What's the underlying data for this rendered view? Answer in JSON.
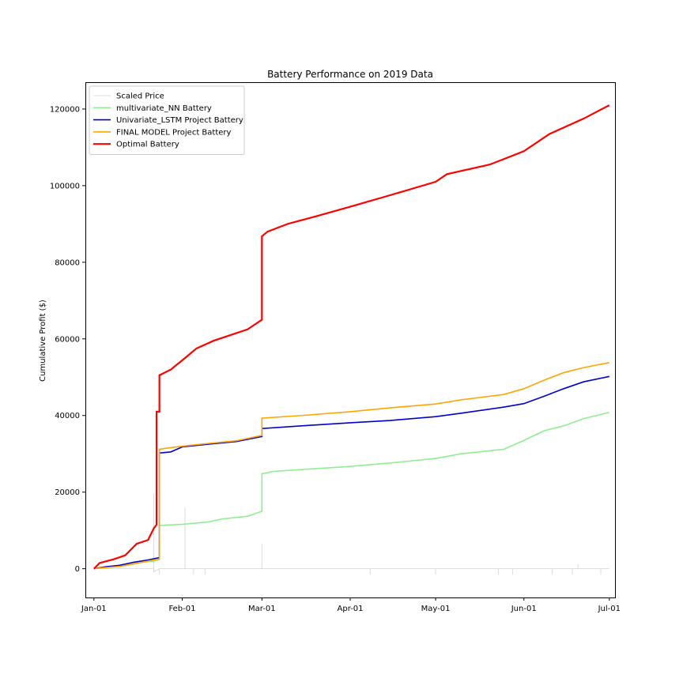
{
  "chart_data": {
    "type": "line",
    "title": "Battery Performance on 2019 Data",
    "xlabel": "",
    "ylabel": "Cumulative Profit ($)",
    "x_range": [
      "2018-12-29",
      "2019-07-03"
    ],
    "ylim": [
      -7500,
      127000
    ],
    "x_ticks": [
      {
        "date": "2019-01-01",
        "label": "Jan-01"
      },
      {
        "date": "2019-02-01",
        "label": "Feb-01"
      },
      {
        "date": "2019-03-01",
        "label": "Mar-01"
      },
      {
        "date": "2019-04-01",
        "label": "Apr-01"
      },
      {
        "date": "2019-05-01",
        "label": "May-01"
      },
      {
        "date": "2019-06-01",
        "label": "Jun-01"
      },
      {
        "date": "2019-07-01",
        "label": "Jul-01"
      }
    ],
    "y_ticks": [
      0,
      20000,
      40000,
      60000,
      80000,
      100000,
      120000
    ],
    "grid": false,
    "legend_position": "top-left",
    "series": [
      {
        "name": "Scaled Price",
        "color": "#d3d3d3",
        "style": "thin",
        "points": [
          [
            "2019-01-01",
            0
          ],
          [
            "2019-01-22",
            0
          ],
          [
            "2019-01-22",
            19500
          ],
          [
            "2019-01-22",
            -800
          ],
          [
            "2019-01-24",
            0
          ],
          [
            "2019-01-24",
            -1500
          ],
          [
            "2019-01-24",
            0
          ],
          [
            "2019-02-02",
            0
          ],
          [
            "2019-02-02",
            16000
          ],
          [
            "2019-02-02",
            0
          ],
          [
            "2019-02-05",
            0
          ],
          [
            "2019-02-05",
            -1500
          ],
          [
            "2019-02-05",
            0
          ],
          [
            "2019-02-09",
            0
          ],
          [
            "2019-02-09",
            -1500
          ],
          [
            "2019-02-09",
            0
          ],
          [
            "2019-03-01",
            0
          ],
          [
            "2019-03-01",
            6500
          ],
          [
            "2019-03-01",
            0
          ],
          [
            "2019-04-08",
            0
          ],
          [
            "2019-04-08",
            -1500
          ],
          [
            "2019-04-08",
            0
          ],
          [
            "2019-05-01",
            0
          ],
          [
            "2019-05-01",
            -1500
          ],
          [
            "2019-05-01",
            0
          ],
          [
            "2019-05-23",
            0
          ],
          [
            "2019-05-23",
            -1500
          ],
          [
            "2019-05-23",
            0
          ],
          [
            "2019-05-28",
            0
          ],
          [
            "2019-05-28",
            -1500
          ],
          [
            "2019-05-28",
            0
          ],
          [
            "2019-06-11",
            0
          ],
          [
            "2019-06-11",
            -1500
          ],
          [
            "2019-06-11",
            0
          ],
          [
            "2019-06-18",
            0
          ],
          [
            "2019-06-18",
            -1500
          ],
          [
            "2019-06-18",
            0
          ],
          [
            "2019-06-20",
            0
          ],
          [
            "2019-06-20",
            1200
          ],
          [
            "2019-06-20",
            0
          ],
          [
            "2019-06-28",
            0
          ],
          [
            "2019-06-28",
            -1500
          ],
          [
            "2019-06-28",
            0
          ],
          [
            "2019-07-01",
            0
          ]
        ]
      },
      {
        "name": "multivariate_NN Battery",
        "color": "#90ee90",
        "style": "medium",
        "points": [
          [
            "2019-01-01",
            0
          ],
          [
            "2019-01-05",
            300
          ],
          [
            "2019-01-10",
            600
          ],
          [
            "2019-01-15",
            1200
          ],
          [
            "2019-01-18",
            1700
          ],
          [
            "2019-01-22",
            2000
          ],
          [
            "2019-01-24",
            2400
          ],
          [
            "2019-01-24",
            11300
          ],
          [
            "2019-02-01",
            11600
          ],
          [
            "2019-02-10",
            12200
          ],
          [
            "2019-02-15",
            13000
          ],
          [
            "2019-02-24",
            13700
          ],
          [
            "2019-03-01",
            15000
          ],
          [
            "2019-03-01",
            24800
          ],
          [
            "2019-03-05",
            25400
          ],
          [
            "2019-03-15",
            25900
          ],
          [
            "2019-03-30",
            26600
          ],
          [
            "2019-04-15",
            27600
          ],
          [
            "2019-05-01",
            28800
          ],
          [
            "2019-05-10",
            30000
          ],
          [
            "2019-05-25",
            31200
          ],
          [
            "2019-06-01",
            33500
          ],
          [
            "2019-06-08",
            36000
          ],
          [
            "2019-06-15",
            37300
          ],
          [
            "2019-06-22",
            39200
          ],
          [
            "2019-07-01",
            40800
          ]
        ]
      },
      {
        "name": "Univariate_LSTM Project Battery",
        "color": "#0000cd",
        "style": "medium",
        "points": [
          [
            "2019-01-01",
            0
          ],
          [
            "2019-01-05",
            500
          ],
          [
            "2019-01-10",
            900
          ],
          [
            "2019-01-15",
            1700
          ],
          [
            "2019-01-20",
            2300
          ],
          [
            "2019-01-24",
            2900
          ],
          [
            "2019-01-24",
            30200
          ],
          [
            "2019-01-28",
            30500
          ],
          [
            "2019-02-01",
            31800
          ],
          [
            "2019-02-10",
            32500
          ],
          [
            "2019-02-20",
            33200
          ],
          [
            "2019-03-01",
            34500
          ],
          [
            "2019-03-01",
            36600
          ],
          [
            "2019-03-15",
            37300
          ],
          [
            "2019-04-01",
            38100
          ],
          [
            "2019-04-15",
            38700
          ],
          [
            "2019-05-01",
            39700
          ],
          [
            "2019-05-10",
            40600
          ],
          [
            "2019-05-25",
            42200
          ],
          [
            "2019-06-01",
            43100
          ],
          [
            "2019-06-08",
            45000
          ],
          [
            "2019-06-15",
            47000
          ],
          [
            "2019-06-22",
            48800
          ],
          [
            "2019-07-01",
            50200
          ]
        ]
      },
      {
        "name": "FINAL MODEL Project Battery",
        "color": "#ffa500",
        "style": "medium",
        "points": [
          [
            "2019-01-01",
            0
          ],
          [
            "2019-01-05",
            300
          ],
          [
            "2019-01-10",
            600
          ],
          [
            "2019-01-15",
            1300
          ],
          [
            "2019-01-20",
            2000
          ],
          [
            "2019-01-24",
            2600
          ],
          [
            "2019-01-24",
            31200
          ],
          [
            "2019-01-28",
            31600
          ],
          [
            "2019-02-01",
            32000
          ],
          [
            "2019-02-10",
            32700
          ],
          [
            "2019-02-20",
            33400
          ],
          [
            "2019-03-01",
            34800
          ],
          [
            "2019-03-01",
            39300
          ],
          [
            "2019-03-15",
            40000
          ],
          [
            "2019-04-01",
            41000
          ],
          [
            "2019-04-15",
            42000
          ],
          [
            "2019-05-01",
            43000
          ],
          [
            "2019-05-10",
            44100
          ],
          [
            "2019-05-25",
            45500
          ],
          [
            "2019-06-01",
            47000
          ],
          [
            "2019-06-08",
            49200
          ],
          [
            "2019-06-15",
            51200
          ],
          [
            "2019-06-22",
            52500
          ],
          [
            "2019-07-01",
            53800
          ]
        ]
      },
      {
        "name": "Optimal Battery",
        "color": "#ff0000",
        "style": "thick",
        "points": [
          [
            "2019-01-01",
            0
          ],
          [
            "2019-01-03",
            1500
          ],
          [
            "2019-01-08",
            2500
          ],
          [
            "2019-01-12",
            3500
          ],
          [
            "2019-01-16",
            6500
          ],
          [
            "2019-01-20",
            7500
          ],
          [
            "2019-01-22",
            10500
          ],
          [
            "2019-01-23",
            11500
          ],
          [
            "2019-01-23",
            41000
          ],
          [
            "2019-01-24",
            41000
          ],
          [
            "2019-01-24",
            50500
          ],
          [
            "2019-01-28",
            52000
          ],
          [
            "2019-02-02",
            55000
          ],
          [
            "2019-02-06",
            57500
          ],
          [
            "2019-02-12",
            59500
          ],
          [
            "2019-02-18",
            61000
          ],
          [
            "2019-02-24",
            62500
          ],
          [
            "2019-03-01",
            65000
          ],
          [
            "2019-03-01",
            86800
          ],
          [
            "2019-03-03",
            88000
          ],
          [
            "2019-03-10",
            90000
          ],
          [
            "2019-03-20",
            92000
          ],
          [
            "2019-04-01",
            94500
          ],
          [
            "2019-04-15",
            97500
          ],
          [
            "2019-05-01",
            101000
          ],
          [
            "2019-05-05",
            103000
          ],
          [
            "2019-05-20",
            105500
          ],
          [
            "2019-06-01",
            109000
          ],
          [
            "2019-06-10",
            113500
          ],
          [
            "2019-06-22",
            117500
          ],
          [
            "2019-07-01",
            121000
          ]
        ]
      }
    ]
  }
}
